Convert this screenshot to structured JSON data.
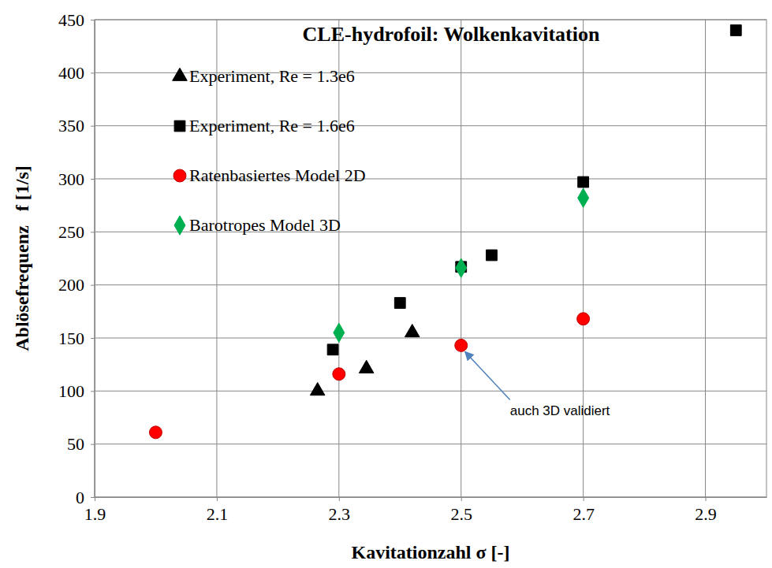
{
  "chart_data": {
    "type": "scatter",
    "title": "CLE-hydrofoil: Wolkenkavitation",
    "x_label": "Kavitationzahl σ [-]",
    "y_label": "Ablösefrequenz   f [1/s]",
    "xlim": [
      1.9,
      3.0
    ],
    "xticks": [
      1.9,
      2.1,
      2.3,
      2.5,
      2.7,
      2.9
    ],
    "ylim": [
      0,
      450
    ],
    "yticks": [
      0,
      50,
      100,
      150,
      200,
      250,
      300,
      350,
      400,
      450
    ],
    "grid": true,
    "legend": "top-left",
    "series": [
      {
        "name": "Experiment, Re = 1.3e6",
        "color": "#000000",
        "marker": "triangle",
        "x": [
          2.265,
          2.345,
          2.42
        ],
        "values": [
          100,
          121,
          155
        ]
      },
      {
        "name": "Experiment, Re = 1.6e6",
        "color": "#000000",
        "marker": "square",
        "x": [
          2.29,
          2.4,
          2.5,
          2.55,
          2.7,
          2.95
        ],
        "values": [
          139,
          183,
          217,
          228,
          297,
          440
        ]
      },
      {
        "name": "Ratenbasiertes Model 2D",
        "color": "#ff0000",
        "marker": "circle",
        "x": [
          2.0,
          2.3,
          2.5,
          2.7
        ],
        "values": [
          61,
          116,
          143,
          168
        ]
      },
      {
        "name": "Barotropes Model 3D",
        "color": "#00b050",
        "marker": "diamond",
        "x": [
          2.3,
          2.5,
          2.7
        ],
        "values": [
          155,
          216,
          282
        ]
      }
    ],
    "annotations": [
      {
        "text": "auch 3D validiert",
        "x": 2.5,
        "y": 143
      }
    ]
  }
}
